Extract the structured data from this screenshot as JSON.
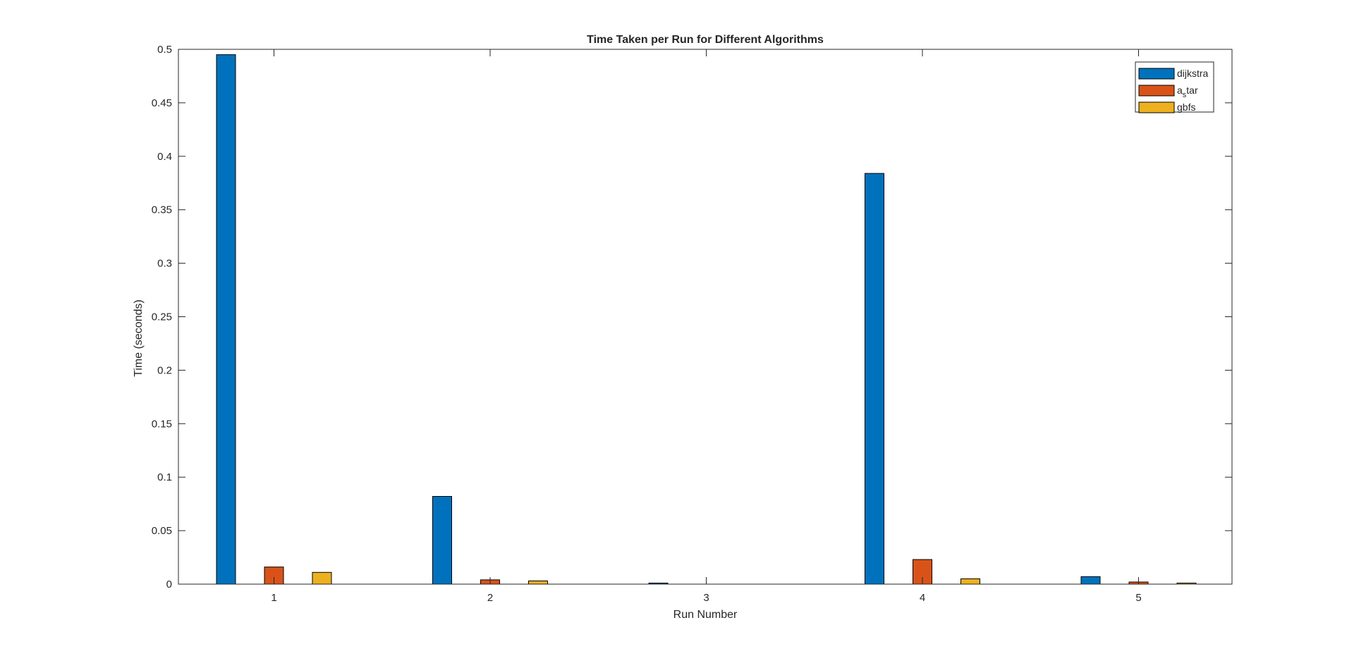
{
  "chart_data": {
    "type": "bar",
    "title": "Time Taken per Run for Different Algorithms",
    "xlabel": "Run Number",
    "ylabel": "Time (seconds)",
    "categories": [
      "1",
      "2",
      "3",
      "4",
      "5"
    ],
    "ylim": [
      0,
      0.5
    ],
    "yticks": [
      0,
      0.05,
      0.1,
      0.15,
      0.2,
      0.25,
      0.3,
      0.35,
      0.4,
      0.45,
      0.5
    ],
    "ytick_labels": [
      "0",
      "0.05",
      "0.1",
      "0.15",
      "0.2",
      "0.25",
      "0.3",
      "0.35",
      "0.4",
      "0.45",
      "0.5"
    ],
    "grid": false,
    "legend_position": "top-right",
    "series": [
      {
        "name": "dijkstra",
        "legend_label": {
          "base": "dijkstra",
          "sub": "",
          "rest": ""
        },
        "color": "#0072BD",
        "values": [
          0.495,
          0.082,
          0.001,
          0.384,
          0.007
        ]
      },
      {
        "name": "a_star",
        "legend_label": {
          "base": "a",
          "sub": "s",
          "rest": "tar"
        },
        "color": "#D95319",
        "values": [
          0.016,
          0.004,
          0.0,
          0.023,
          0.002
        ]
      },
      {
        "name": "gbfs",
        "legend_label": {
          "base": "gbfs",
          "sub": "",
          "rest": ""
        },
        "color": "#EDB120",
        "values": [
          0.011,
          0.003,
          0.0,
          0.005,
          0.001
        ]
      }
    ]
  }
}
